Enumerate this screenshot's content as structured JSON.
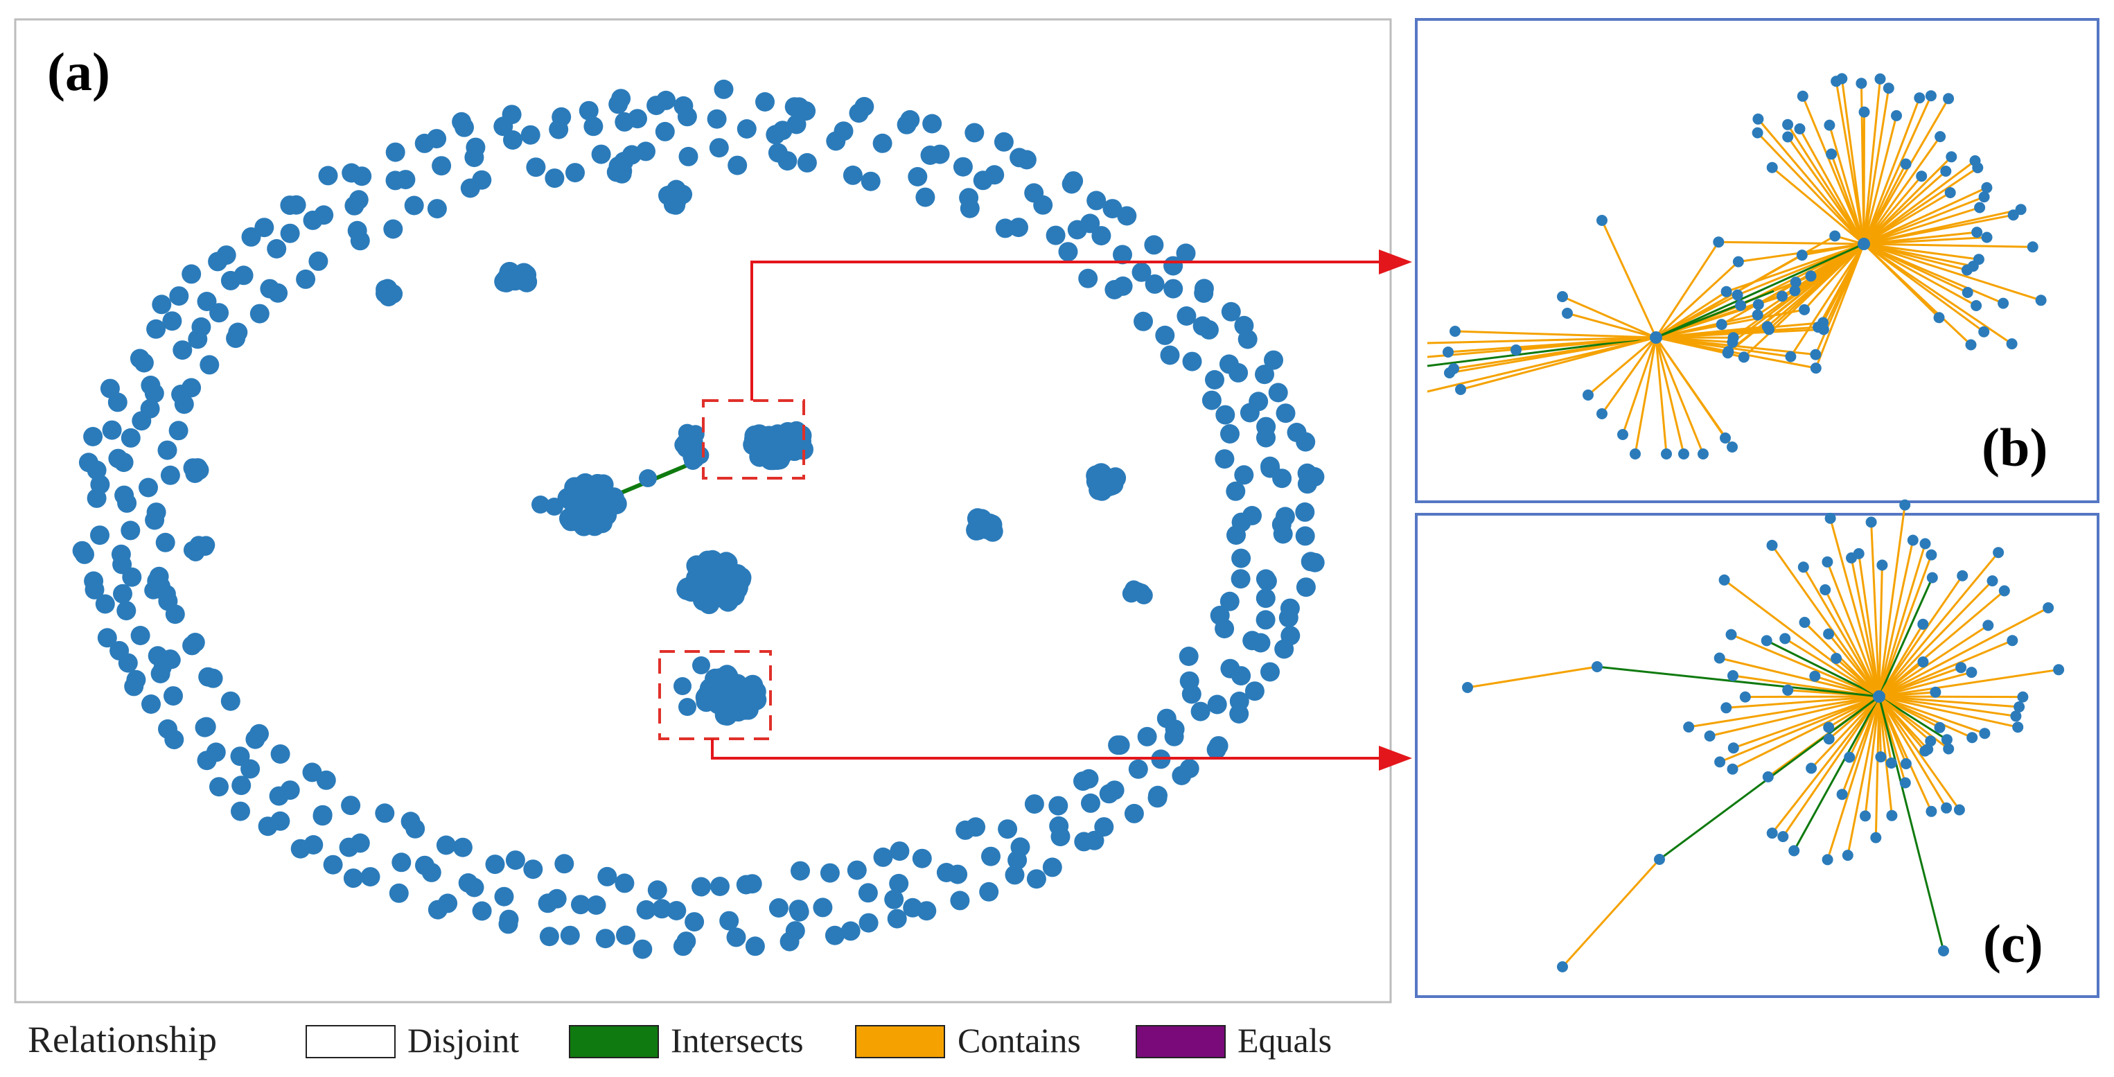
{
  "panels": {
    "a": {
      "label": "(a)"
    },
    "b": {
      "label": "(b)"
    },
    "c": {
      "label": "(c)"
    }
  },
  "legend": {
    "title": "Relationship",
    "items": [
      {
        "name": "Disjoint",
        "color": "#ffffff"
      },
      {
        "name": "Intersects",
        "color": "#0f7a0f"
      },
      {
        "name": "Contains",
        "color": "#f5a200"
      },
      {
        "name": "Equals",
        "color": "#7a0a7a"
      }
    ]
  },
  "colors": {
    "node": "#2b7bba",
    "highlight_box": "#e0302a",
    "callout_arrow": "#e3161b",
    "zoom_frame": "#5577c4",
    "panel_a_border": "#bdbdbd"
  }
}
